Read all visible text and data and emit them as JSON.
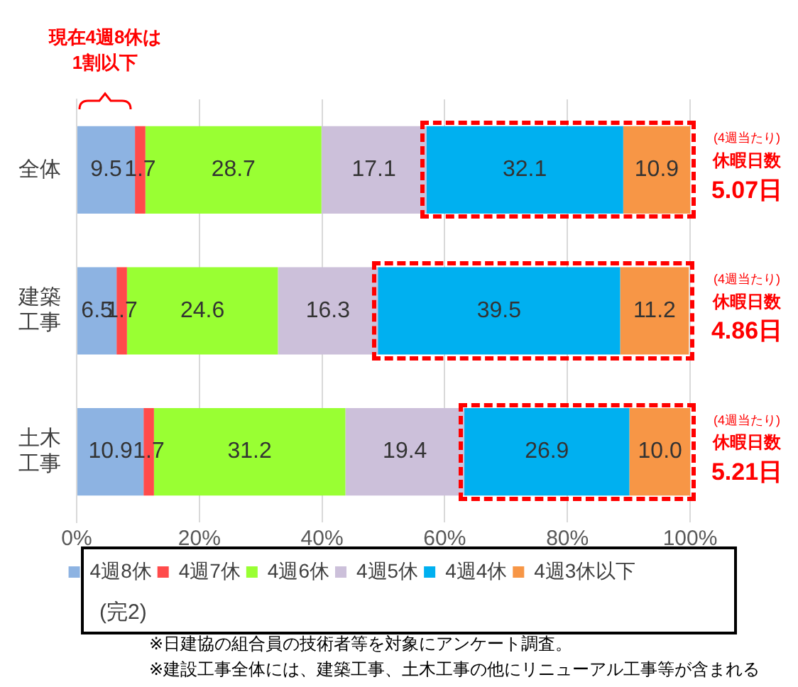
{
  "chart_data": {
    "type": "bar",
    "orientation": "horizontal",
    "stacked": true,
    "categories": [
      "全体",
      "建築工事",
      "土木工事"
    ],
    "series": [
      {
        "name": "4週8休",
        "color": "#8db3e2",
        "values": [
          9.5,
          6.5,
          10.9
        ]
      },
      {
        "name": "4週7休",
        "color": "#ff4b4b",
        "values": [
          1.7,
          1.7,
          1.7
        ]
      },
      {
        "name": "4週6休",
        "color": "#99ff33",
        "values": [
          28.7,
          24.6,
          31.2
        ]
      },
      {
        "name": "4週5休",
        "color": "#ccc0da",
        "values": [
          17.1,
          16.3,
          19.4
        ]
      },
      {
        "name": "4週4休",
        "color": "#00b0f0",
        "values": [
          32.1,
          39.5,
          26.9
        ]
      },
      {
        "name": "4週3休以下",
        "color": "#f79646",
        "values": [
          10.9,
          11.2,
          10.0
        ],
        "value_labels": [
          "10.9",
          "11.2",
          "10.0"
        ]
      }
    ],
    "xlim": [
      0,
      100
    ],
    "xticks": [
      {
        "value": 0,
        "label": "0%"
      },
      {
        "value": 20,
        "label": "20%"
      },
      {
        "value": 40,
        "label": "40%"
      },
      {
        "value": 60,
        "label": "60%"
      },
      {
        "value": 80,
        "label": "80%"
      },
      {
        "value": 100,
        "label": "100%"
      }
    ],
    "grid": "x",
    "legend": "bottom",
    "data_labels": true,
    "annotations": [
      "現在4週8休は\n1割以下",
      "(4週当たり)\n休暇日数\n5.07日",
      "(4週当たり)\n休暇日数\n4.86日",
      "(4週当たり)\n休暇日数\n5.21日",
      "(完2)",
      "※日建協の組合員の技術者等を対象にアンケート調査。",
      "※建設工事全体には、建築工事、土木工事の他にリニューアル工事等が含まれる"
    ]
  }
}
